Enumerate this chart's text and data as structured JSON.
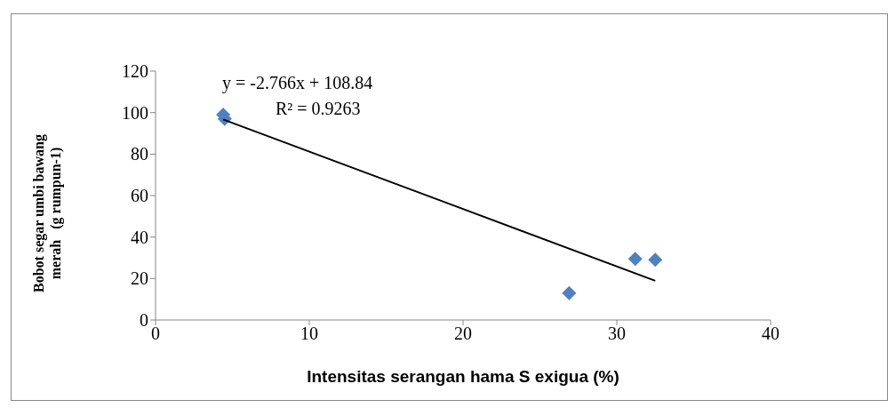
{
  "chart_data": {
    "type": "scatter",
    "xlabel": "Intensitas serangan hama S exigua (%)",
    "ylabel": "Bobot segar umbi bawang merah   (g rumpun-1)",
    "xlim": [
      0,
      40
    ],
    "xticks": [
      0,
      10,
      20,
      30,
      40
    ],
    "ylim": [
      0,
      120
    ],
    "yticks": [
      0,
      20,
      40,
      60,
      80,
      100,
      120
    ],
    "grid": false,
    "marker": "diamond",
    "annotations": [
      "y = -2.766x + 108.84",
      "R² = 0.9263"
    ],
    "series": [
      {
        "color": "#4f81bd",
        "x": [
          4.4,
          4.5,
          26.9,
          31.2,
          32.5
        ],
        "values": [
          99,
          97,
          13,
          29.5,
          29
        ]
      },
      {
        "type": "line",
        "color": "#000000",
        "x": [
          4.4,
          32.5
        ],
        "values": [
          96.7,
          18.9
        ],
        "marker": "none",
        "line_style": "solid"
      }
    ]
  }
}
